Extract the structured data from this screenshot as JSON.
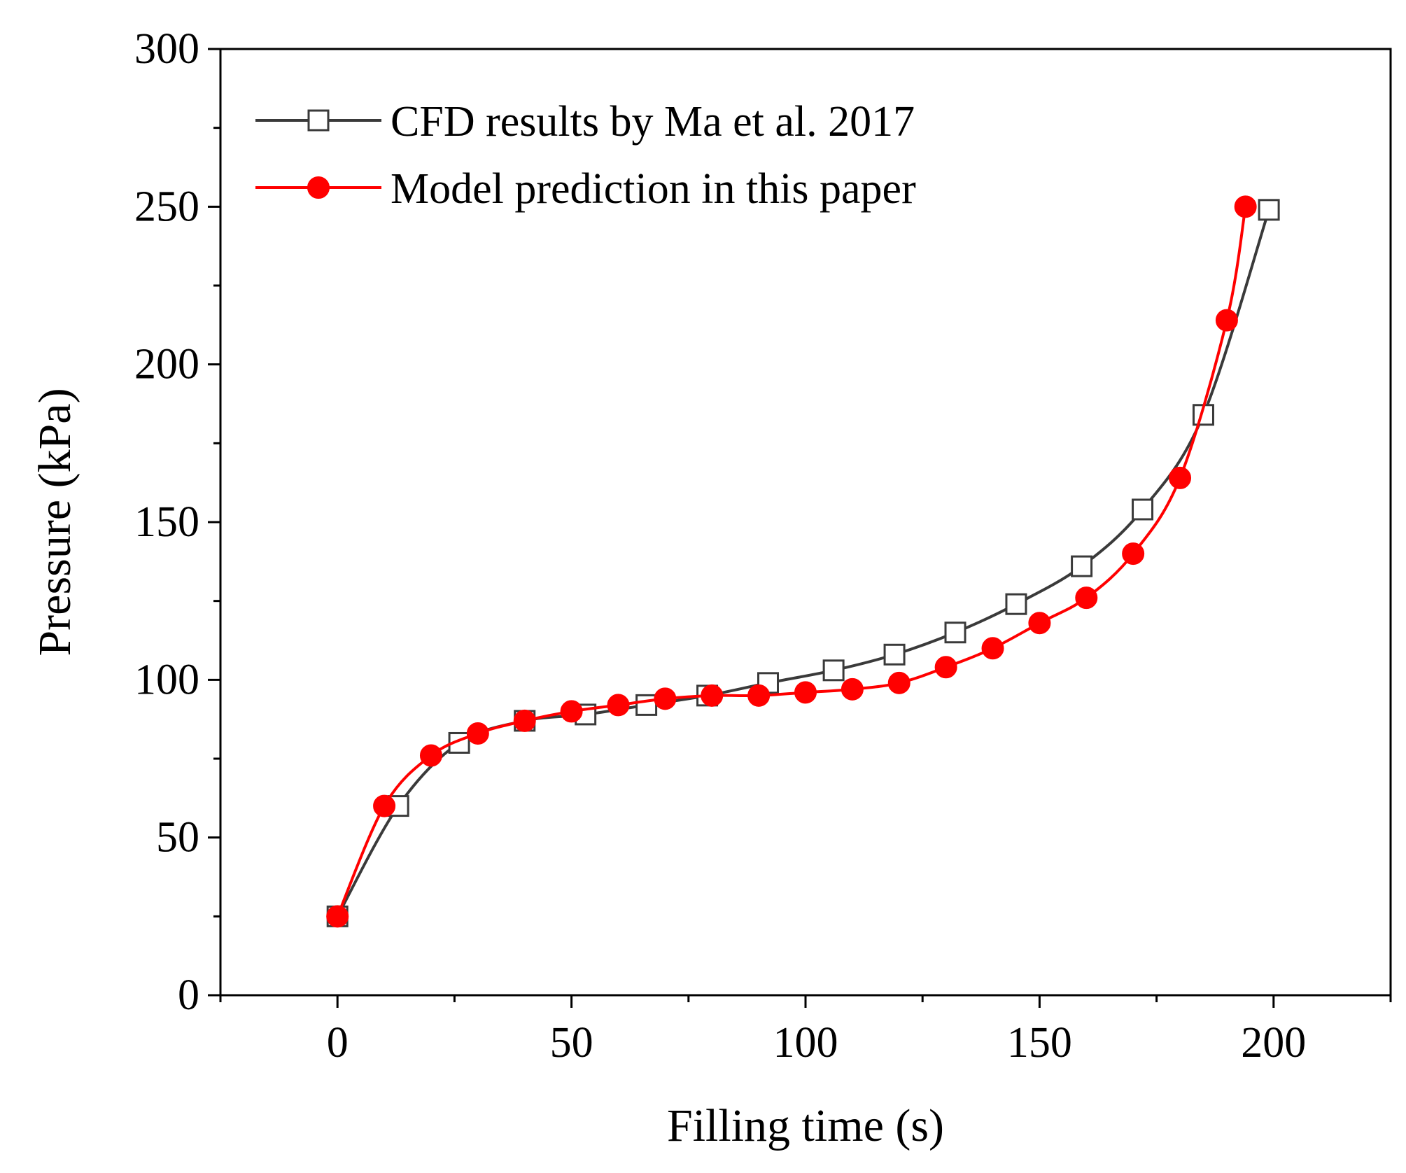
{
  "chart_data": {
    "type": "line",
    "title": "",
    "xlabel": "Filling time (s)",
    "ylabel": "Pressure (kPa)",
    "xlim": [
      -25,
      225
    ],
    "ylim": [
      0,
      300
    ],
    "xticks": [
      0,
      50,
      100,
      150,
      200
    ],
    "yticks": [
      0,
      50,
      100,
      150,
      200,
      250,
      300
    ],
    "grid": false,
    "legend_position": "top-left",
    "series": [
      {
        "name": "CFD results by Ma et al. 2017",
        "color": "#3a3a3a",
        "marker": "open-square",
        "x": [
          0,
          13,
          26,
          40,
          53,
          66,
          79,
          92,
          106,
          119,
          132,
          145,
          159,
          172,
          185,
          199
        ],
        "y": [
          25,
          60,
          80,
          87,
          89,
          92,
          95,
          99,
          103,
          108,
          115,
          124,
          136,
          154,
          184,
          249
        ]
      },
      {
        "name": "Model prediction in this paper",
        "color": "#ff0000",
        "marker": "filled-circle",
        "x": [
          0,
          10,
          20,
          30,
          40,
          50,
          60,
          70,
          80,
          90,
          100,
          110,
          120,
          130,
          140,
          150,
          160,
          170,
          180,
          190,
          194
        ],
        "y": [
          25,
          60,
          76,
          83,
          87,
          90,
          92,
          94,
          95,
          95,
          96,
          97,
          99,
          104,
          110,
          118,
          126,
          140,
          164,
          214,
          250
        ]
      }
    ]
  }
}
